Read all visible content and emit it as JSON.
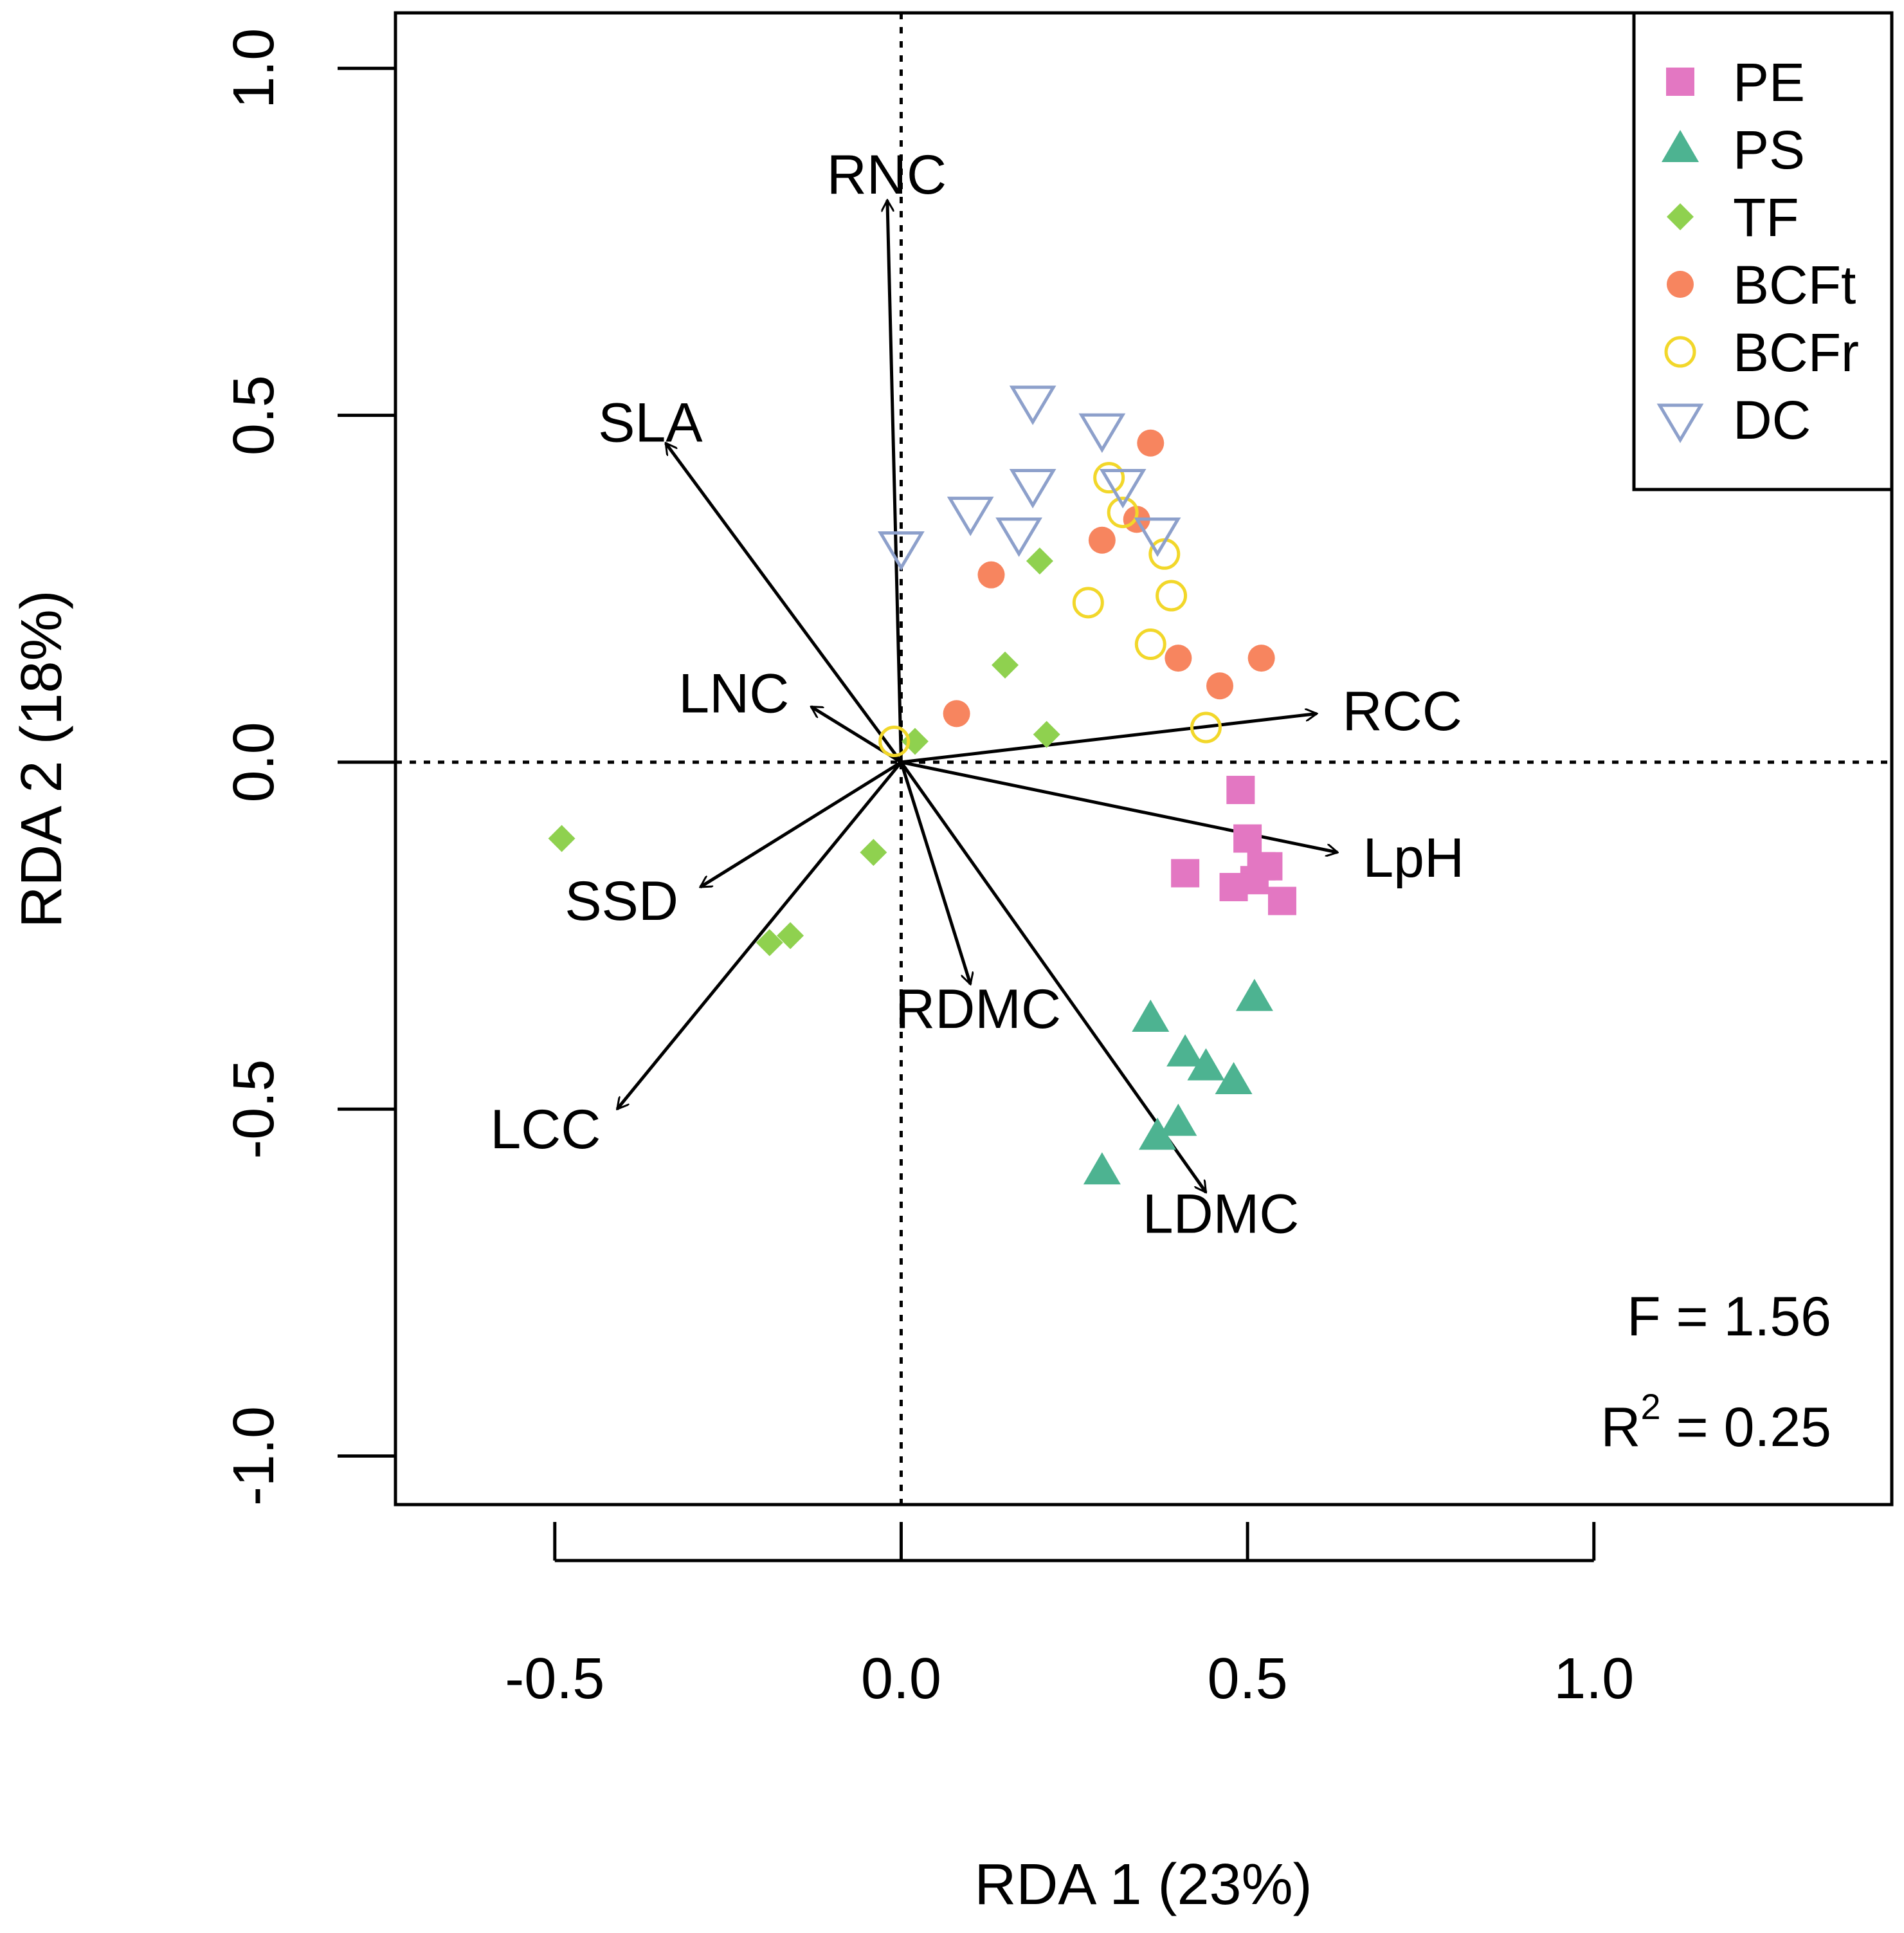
{
  "chart_data": {
    "type": "scatter",
    "xlabel": "RDA 1 (23%)",
    "ylabel": "RDA 2 (18%)",
    "xlim": [
      -0.73,
      1.43
    ],
    "ylim": [
      -1.07,
      1.08
    ],
    "xticks": [
      "-0.5",
      "0.0",
      "0.5",
      "1.0"
    ],
    "xtick_values": [
      -0.5,
      0.0,
      0.5,
      1.0
    ],
    "yticks": [
      "-1.0",
      "-0.5",
      "0.0",
      "0.5",
      "1.0"
    ],
    "ytick_values": [
      -1.0,
      -0.5,
      0.0,
      0.5,
      1.0
    ],
    "reference_lines": {
      "x": 0,
      "y": 0,
      "style": "dotted"
    },
    "legend_position": "top-right",
    "series": [
      {
        "name": "PE",
        "marker": "square",
        "color": "#E377C2",
        "points": [
          [
            0.49,
            -0.04
          ],
          [
            0.5,
            -0.11
          ],
          [
            0.51,
            -0.17
          ],
          [
            0.52,
            -0.15
          ],
          [
            0.53,
            -0.15
          ],
          [
            0.55,
            -0.2
          ],
          [
            0.48,
            -0.18
          ],
          [
            0.41,
            -0.16
          ]
        ]
      },
      {
        "name": "PS",
        "marker": "triangle",
        "color": "#4DB391",
        "points": [
          [
            0.36,
            -0.37
          ],
          [
            0.51,
            -0.34
          ],
          [
            0.41,
            -0.42
          ],
          [
            0.44,
            -0.44
          ],
          [
            0.48,
            -0.46
          ],
          [
            0.4,
            -0.52
          ],
          [
            0.37,
            -0.54
          ],
          [
            0.29,
            -0.59
          ]
        ]
      },
      {
        "name": "TF",
        "marker": "diamond",
        "color": "#8FD14F",
        "points": [
          [
            0.2,
            0.29
          ],
          [
            0.15,
            0.14
          ],
          [
            0.21,
            0.04
          ],
          [
            0.02,
            0.03
          ],
          [
            -0.04,
            -0.13
          ],
          [
            -0.49,
            -0.11
          ],
          [
            -0.16,
            -0.25
          ],
          [
            -0.19,
            -0.26
          ]
        ]
      },
      {
        "name": "BCFt",
        "marker": "circle-filled",
        "color": "#F7855F",
        "points": [
          [
            0.36,
            0.46
          ],
          [
            0.34,
            0.35
          ],
          [
            0.29,
            0.32
          ],
          [
            0.13,
            0.27
          ],
          [
            0.4,
            0.15
          ],
          [
            0.46,
            0.11
          ],
          [
            0.52,
            0.15
          ],
          [
            0.08,
            0.07
          ]
        ]
      },
      {
        "name": "BCFr",
        "marker": "circle-open",
        "color": "#F2D72A",
        "points": [
          [
            0.3,
            0.41
          ],
          [
            0.32,
            0.36
          ],
          [
            0.38,
            0.3
          ],
          [
            0.39,
            0.24
          ],
          [
            0.27,
            0.23
          ],
          [
            0.36,
            0.17
          ],
          [
            0.44,
            0.05
          ],
          [
            -0.01,
            0.03
          ]
        ]
      },
      {
        "name": "DC",
        "marker": "triangle-down",
        "color": "#8DA0CB",
        "points": [
          [
            0.19,
            0.52
          ],
          [
            0.29,
            0.48
          ],
          [
            0.19,
            0.4
          ],
          [
            0.32,
            0.4
          ],
          [
            0.1,
            0.36
          ],
          [
            0.17,
            0.33
          ],
          [
            0.37,
            0.33
          ],
          [
            0.0,
            0.31
          ]
        ]
      }
    ],
    "vectors": [
      {
        "label": "RNC",
        "end": [
          -0.02,
          0.81
        ]
      },
      {
        "label": "SLA",
        "end": [
          -0.34,
          0.46
        ]
      },
      {
        "label": "LNC",
        "end": [
          -0.13,
          0.08
        ]
      },
      {
        "label": "RCC",
        "end": [
          0.6,
          0.07
        ]
      },
      {
        "label": "LpH",
        "end": [
          0.63,
          -0.13
        ]
      },
      {
        "label": "SSD",
        "end": [
          -0.29,
          -0.18
        ]
      },
      {
        "label": "LCC",
        "end": [
          -0.41,
          -0.5
        ]
      },
      {
        "label": "RDMC",
        "end": [
          0.1,
          -0.32
        ]
      },
      {
        "label": "LDMC",
        "end": [
          0.44,
          -0.62
        ]
      }
    ],
    "annotations": {
      "F": "F = 1.56",
      "R2_prefix": "R",
      "R2_exp": "2",
      "R2_value": " = 0.25"
    }
  }
}
